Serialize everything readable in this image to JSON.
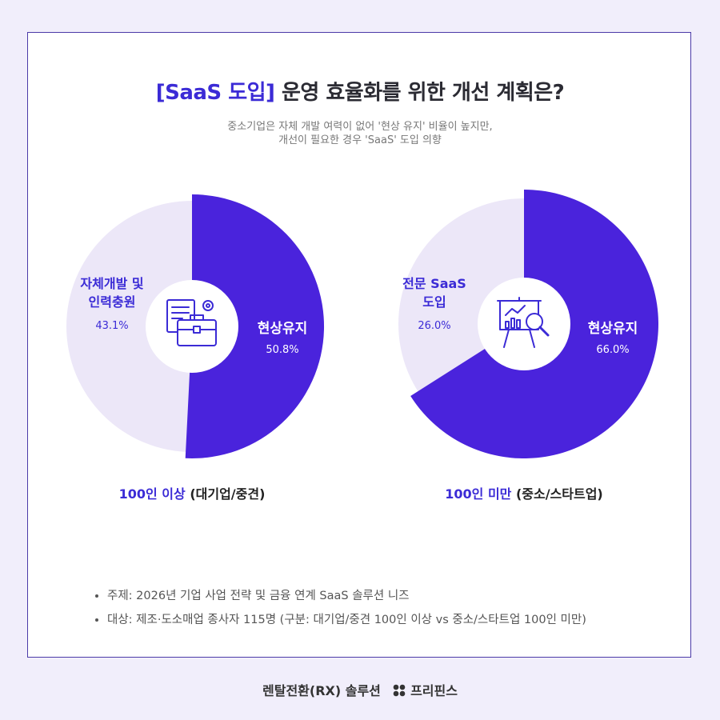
{
  "title": {
    "highlight": "[SaaS 도입]",
    "rest": " 운영 효율화를 위한 개선 계획은?"
  },
  "subtitle": [
    "중소기업은 자체 개발 여력이 없어 '현상 유지' 비율이 높지만,",
    "개선이 필요한 경우 'SaaS' 도입 의향"
  ],
  "colors": {
    "primary": "#4a23dc",
    "secondary": "#ece7f8",
    "accent_text": "#3b2bd6"
  },
  "chart_data": [
    {
      "type": "pie",
      "caption_highlight": "100인 이상",
      "caption_rest": " (대기업/중견)",
      "center_icon": "briefcase-document-gear-icon",
      "slices": [
        {
          "label": "현상유지",
          "value": 50.8,
          "value_text": "50.8%"
        },
        {
          "label": "자체개발 및 인력충원",
          "label_lines": [
            "자체개발 및",
            "인력충원"
          ],
          "value": 43.1,
          "value_text": "43.1%"
        }
      ]
    },
    {
      "type": "pie",
      "caption_highlight": "100인 미만",
      "caption_rest": " (중소/스타트업)",
      "center_icon": "presentation-chart-magnifier-icon",
      "slices": [
        {
          "label": "현상유지",
          "value": 66.0,
          "value_text": "66.0%"
        },
        {
          "label": "전문 SaaS 도입",
          "label_lines": [
            "전문 SaaS",
            "도입"
          ],
          "value": 26.0,
          "value_text": "26.0%"
        }
      ]
    }
  ],
  "notes": [
    "주제: 2026년 기업 사업 전략 및 금융 연계 SaaS 솔루션 니즈",
    "대상: 제조·도소매업 종사자 115명 (구분: 대기업/중견 100인 이상 vs 중소/스타트업 100인 미만)"
  ],
  "footer": {
    "left": "렌탈전환(RX) 솔루션",
    "brand": "프리핀스"
  }
}
